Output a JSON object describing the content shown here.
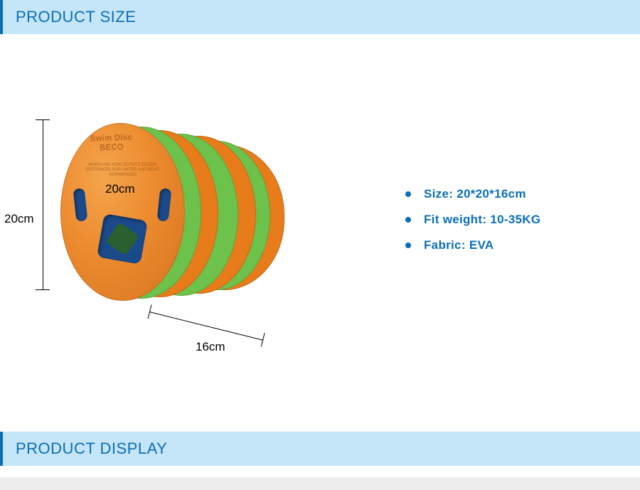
{
  "header": {
    "title": "PRODUCT SIZE"
  },
  "footer": {
    "title": "PRODUCT DISPLAY"
  },
  "dimensions": {
    "height_label": "20cm",
    "height_inner_label": "20cm",
    "depth_label": "16cm"
  },
  "product_face": {
    "emboss_line1": "Swim Disc",
    "emboss_line2": "BECO",
    "warning_text": "WARNUNG  KEIN SCHUTZ\nGEGEN ERTRINKEN\nNUR UNTER AUFSICHT\nVERWENDEN"
  },
  "specs": [
    {
      "label": "Size:",
      "value": "20*20*16cm"
    },
    {
      "label": "Fit weight:",
      "value": "10-35KG"
    },
    {
      "label": "Fabric:",
      "value": "EVA"
    }
  ],
  "colors": {
    "accent": "#0a6fb8",
    "header_bg": "#c5e5f8",
    "disc_orange": "#ec8a2e",
    "disc_green": "#6cc24a",
    "disc_blue": "#1a4a8a"
  }
}
